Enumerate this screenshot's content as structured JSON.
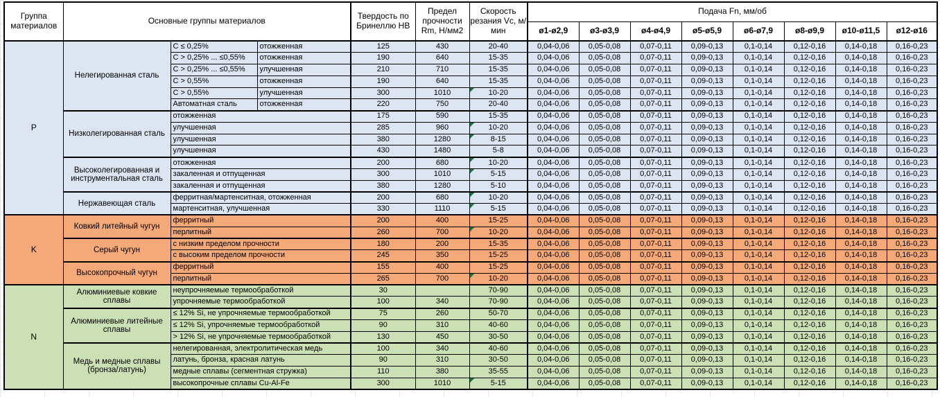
{
  "header": {
    "col_group": "Группа материалов",
    "col_main": "Основные группы материалов",
    "col_hb": "Твердость по Бринеллю HB",
    "col_rm": "Предел прочности Rm, Н/мм2",
    "col_vc": "Скорость резания Vc, м/мин",
    "col_feed": "Подача Fn, мм/об",
    "feed_cols": [
      "ø1-ø2,9",
      "ø3-ø3,9",
      "ø4-ø4,9",
      "ø5-ø5,9",
      "ø6-ø7,9",
      "ø8-ø9,9",
      "ø10-ø11,5",
      "ø12-ø16"
    ]
  },
  "feed_values": [
    "0,04-0,06",
    "0,05-0,08",
    "0,07-0,11",
    "0,09-0,13",
    "0,1-0,14",
    "0,12-0,16",
    "0,14-0,18",
    "0,16-0,23"
  ],
  "colors": {
    "group_p": "#dbe6f2",
    "group_k": "#f5a878",
    "group_n": "#cbe0b4",
    "flag_triangle": "#1e7145"
  },
  "groups": [
    {
      "label": "P",
      "color_key": "g-p",
      "blocks": [
        {
          "category": "Нелегированная сталь",
          "rows": [
            {
              "spec": "C ≤ 0,25%",
              "state": "отожженная",
              "hb": "125",
              "rm": "430",
              "vc": "20-40",
              "flag": false
            },
            {
              "spec": "C > 0,25% ... ≤0,55%",
              "state": "отожженная",
              "hb": "190",
              "rm": "640",
              "vc": "15-35",
              "flag": false
            },
            {
              "spec": "C > 0,25% ... ≤0,55%",
              "state": "улучшенная",
              "hb": "210",
              "rm": "710",
              "vc": "15-35",
              "flag": false
            },
            {
              "spec": "C > 0,55%",
              "state": "отожженная",
              "hb": "190",
              "rm": "640",
              "vc": "15-35",
              "flag": false
            },
            {
              "spec": "C > 0,55%",
              "state": "улучшенная",
              "hb": "300",
              "rm": "1010",
              "vc": "10-20",
              "flag": true
            },
            {
              "spec": "Автоматная сталь",
              "state": "отожженная",
              "hb": "220",
              "rm": "750",
              "vc": "20-40",
              "flag": false
            }
          ]
        },
        {
          "category": "Низколегированная сталь",
          "rows": [
            {
              "spec": "отожженная",
              "state": null,
              "hb": "175",
              "rm": "590",
              "vc": "15-35",
              "flag": false
            },
            {
              "spec": "улучшенная",
              "state": null,
              "hb": "285",
              "rm": "960",
              "vc": "10-20",
              "flag": true
            },
            {
              "spec": "улучшенная",
              "state": null,
              "hb": "380",
              "rm": "1280",
              "vc": "8-15",
              "flag": true
            },
            {
              "spec": "улучшенная",
              "state": null,
              "hb": "430",
              "rm": "1480",
              "vc": "5-8",
              "flag": false
            }
          ]
        },
        {
          "category": "Высоколегированная и инструментальная сталь",
          "rows": [
            {
              "spec": "отожженная",
              "state": null,
              "hb": "200",
              "rm": "680",
              "vc": "10-20",
              "flag": true
            },
            {
              "spec": "закаленная и отпущенная",
              "state": null,
              "hb": "300",
              "rm": "1010",
              "vc": "5-15",
              "flag": true
            },
            {
              "spec": "закаленная и отпущенная",
              "state": null,
              "hb": "380",
              "rm": "1280",
              "vc": "5-10",
              "flag": false
            }
          ]
        },
        {
          "category": "Нержавеющая сталь",
          "rows": [
            {
              "spec": "ферритная/мартенситная, отожженная",
              "state": null,
              "hb": "200",
              "rm": "680",
              "vc": "10-20",
              "flag": true
            },
            {
              "spec": "мартенситная, улучшенная",
              "state": null,
              "hb": "330",
              "rm": "1110",
              "vc": "5-15",
              "flag": true
            }
          ]
        }
      ]
    },
    {
      "label": "K",
      "color_key": "g-k",
      "blocks": [
        {
          "category": "Ковкий литейный чугун",
          "rows": [
            {
              "spec": "ферритный",
              "state": null,
              "hb": "200",
              "rm": "400",
              "vc": "15-25",
              "flag": false
            },
            {
              "spec": "перлитный",
              "state": null,
              "hb": "260",
              "rm": "700",
              "vc": "10-20",
              "flag": true
            }
          ]
        },
        {
          "category": "Серый чугун",
          "rows": [
            {
              "spec": "с низким пределом прочности",
              "state": null,
              "hb": "180",
              "rm": "200",
              "vc": "15-35",
              "flag": false
            },
            {
              "spec": "с высоким пределом прочности",
              "state": null,
              "hb": "245",
              "rm": "350",
              "vc": "15-25",
              "flag": false
            }
          ]
        },
        {
          "category": "Высокопрочный чугун",
          "rows": [
            {
              "spec": "ферритный",
              "state": null,
              "hb": "155",
              "rm": "400",
              "vc": "15-25",
              "flag": false
            },
            {
              "spec": "перлитный",
              "state": null,
              "hb": "265",
              "rm": "700",
              "vc": "10-20",
              "flag": true
            }
          ]
        }
      ]
    },
    {
      "label": "N",
      "color_key": "g-n",
      "blocks": [
        {
          "category": "Алюминиевые ковкие сплавы",
          "rows": [
            {
              "spec": "неупрочняемые термообработкой",
              "state": null,
              "hb": "30",
              "rm": "",
              "vc": "70-90",
              "flag": false
            },
            {
              "spec": "упрочняемые термообработкой",
              "state": null,
              "hb": "100",
              "rm": "340",
              "vc": "70-90",
              "flag": false
            }
          ]
        },
        {
          "category": "Алюминиевые литейные сплавы",
          "rows": [
            {
              "spec": "≤ 12% Si, не упрочняемые термообработкой",
              "state": null,
              "hb": "75",
              "rm": "260",
              "vc": "50-70",
              "flag": false
            },
            {
              "spec": "≤ 12% Si, упрочняемые термообработкой",
              "state": null,
              "hb": "90",
              "rm": "310",
              "vc": "40-60",
              "flag": false
            },
            {
              "spec": "> 12% Si, не упрочняемые термообработкой",
              "state": null,
              "hb": "130",
              "rm": "450",
              "vc": "30-50",
              "flag": false
            }
          ]
        },
        {
          "category": "Медь и медные сплавы (бронза/латунь)",
          "rows": [
            {
              "spec": "нелегированная, электролитическая медь",
              "state": null,
              "hb": "100",
              "rm": "340",
              "vc": "40-60",
              "flag": false
            },
            {
              "spec": "латунь, бронза, красная латунь",
              "state": null,
              "hb": "90",
              "rm": "310",
              "vc": "30-50",
              "flag": false
            },
            {
              "spec": "медные сплавы (сегментная стружка)",
              "state": null,
              "hb": "110",
              "rm": "380",
              "vc": "35-55",
              "flag": false
            },
            {
              "spec": "высокопрочные сплавы Cu-Al-Fe",
              "state": null,
              "hb": "300",
              "rm": "1010",
              "vc": "5-15",
              "flag": true
            }
          ]
        }
      ]
    }
  ]
}
